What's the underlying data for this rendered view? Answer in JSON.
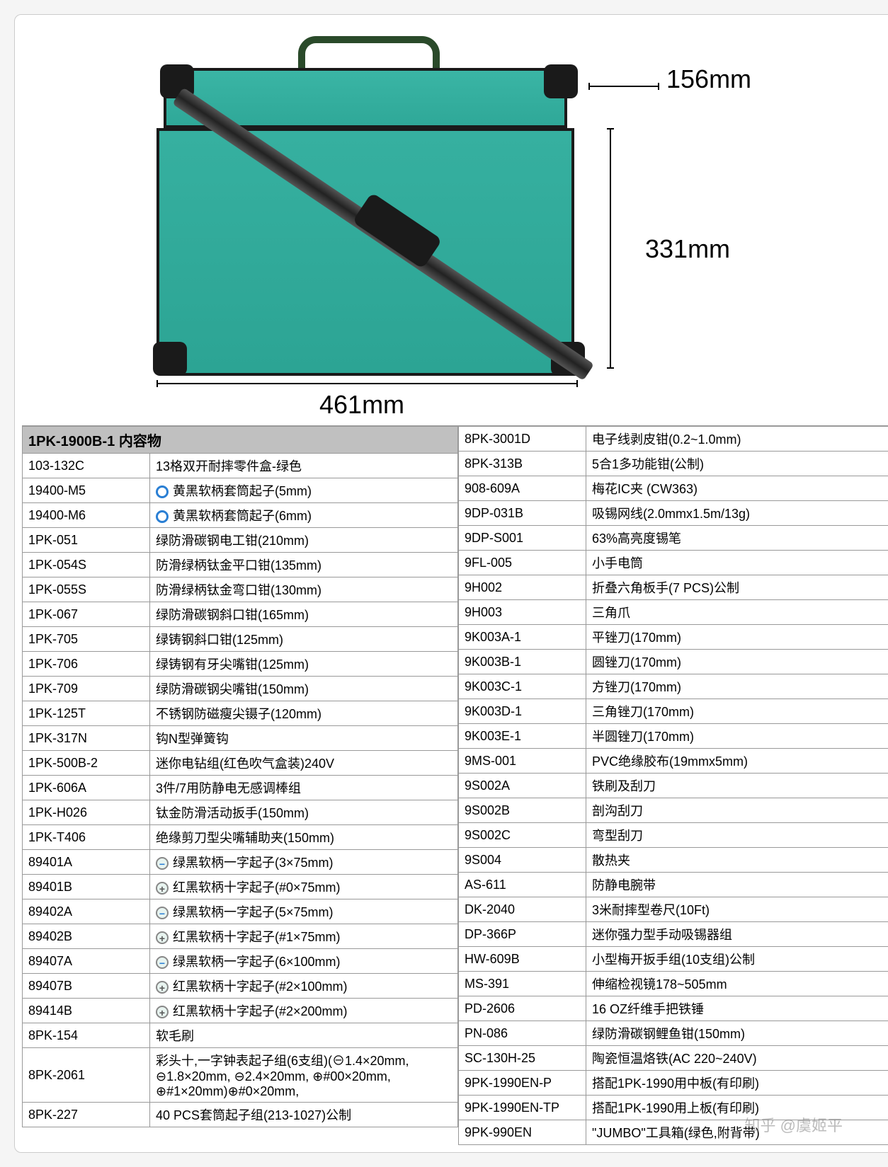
{
  "product": {
    "title": "1PK-1900B-1 内容物",
    "dimensions": {
      "depth_mm": "156mm",
      "height_mm": "331mm",
      "width_mm": "461mm"
    },
    "case_color": "#2fa898",
    "border_color": "#1a1a1a"
  },
  "colors": {
    "header_bg": "#c0c0c0",
    "border": "#999999",
    "bullet_blue": "#2a7fd4",
    "bullet_gray": "#888888"
  },
  "left_table": [
    {
      "code": "103-132C",
      "desc": "13格双开耐摔零件盒-绿色",
      "icon": null
    },
    {
      "code": "19400-M5",
      "desc": "黄黑软柄套筒起子(5mm)",
      "icon": "blue"
    },
    {
      "code": "19400-M6",
      "desc": "黄黑软柄套筒起子(6mm)",
      "icon": "blue"
    },
    {
      "code": "1PK-051",
      "desc": "绿防滑碳钢电工钳(210mm)",
      "icon": null
    },
    {
      "code": "1PK-054S",
      "desc": "防滑绿柄钛金平口钳(135mm)",
      "icon": null
    },
    {
      "code": "1PK-055S",
      "desc": "防滑绿柄钛金弯口钳(130mm)",
      "icon": null
    },
    {
      "code": "1PK-067",
      "desc": "绿防滑碳钢斜口钳(165mm)",
      "icon": null
    },
    {
      "code": "1PK-705",
      "desc": "绿铸钢斜口钳(125mm)",
      "icon": null
    },
    {
      "code": "1PK-706",
      "desc": "绿铸钢有牙尖嘴钳(125mm)",
      "icon": null
    },
    {
      "code": "1PK-709",
      "desc": "绿防滑碳钢尖嘴钳(150mm)",
      "icon": null
    },
    {
      "code": "1PK-125T",
      "desc": "不锈钢防磁瘦尖镊子(120mm)",
      "icon": null
    },
    {
      "code": "1PK-317N",
      "desc": "钩N型弹簧钩",
      "icon": null
    },
    {
      "code": "1PK-500B-2",
      "desc": "迷你电钻组(红色吹气盒装)240V",
      "icon": null
    },
    {
      "code": "1PK-606A",
      "desc": "3件/7用防静电无感调棒组",
      "icon": null
    },
    {
      "code": "1PK-H026",
      "desc": "钛金防滑活动扳手(150mm)",
      "icon": null
    },
    {
      "code": "1PK-T406",
      "desc": "绝缘剪刀型尖嘴辅助夹(150mm)",
      "icon": null
    },
    {
      "code": "89401A",
      "desc": "绿黑软柄一字起子(3×75mm)",
      "icon": "minus"
    },
    {
      "code": "89401B",
      "desc": "红黑软柄十字起子(#0×75mm)",
      "icon": "plus"
    },
    {
      "code": "89402A",
      "desc": "绿黑软柄一字起子(5×75mm)",
      "icon": "minus"
    },
    {
      "code": "89402B",
      "desc": "红黑软柄十字起子(#1×75mm)",
      "icon": "plus"
    },
    {
      "code": "89407A",
      "desc": "绿黑软柄一字起子(6×100mm)",
      "icon": "minus"
    },
    {
      "code": "89407B",
      "desc": "红黑软柄十字起子(#2×100mm)",
      "icon": "plus"
    },
    {
      "code": "89414B",
      "desc": "红黑软柄十字起子(#2×200mm)",
      "icon": "plus"
    },
    {
      "code": "8PK-154",
      "desc": "软毛刷",
      "icon": null
    },
    {
      "code": "8PK-2061",
      "desc": "彩头十,一字钟表起子组(6支组)(⊖1.4×20mm, ⊖1.8×20mm, ⊖2.4×20mm, ⊕#00×20mm, ⊕#1×20mm)⊕#0×20mm,",
      "icon": null
    },
    {
      "code": "8PK-227",
      "desc": "40 PCS套筒起子组(213-1027)公制",
      "icon": null
    }
  ],
  "right_table": [
    {
      "code": "8PK-3001D",
      "desc": "电子线剥皮钳(0.2~1.0mm)"
    },
    {
      "code": "8PK-313B",
      "desc": "5合1多功能钳(公制)"
    },
    {
      "code": "908-609A",
      "desc": "梅花IC夹 (CW363)"
    },
    {
      "code": "9DP-031B",
      "desc": "吸锡网线(2.0mmx1.5m/13g)"
    },
    {
      "code": "9DP-S001",
      "desc": "63%高亮度锡笔"
    },
    {
      "code": "9FL-005",
      "desc": "小手电筒"
    },
    {
      "code": "9H002",
      "desc": "折叠六角板手(7 PCS)公制"
    },
    {
      "code": "9H003",
      "desc": "三角爪"
    },
    {
      "code": "9K003A-1",
      "desc": "平锉刀(170mm)"
    },
    {
      "code": "9K003B-1",
      "desc": "圆锉刀(170mm)"
    },
    {
      "code": "9K003C-1",
      "desc": "方锉刀(170mm)"
    },
    {
      "code": "9K003D-1",
      "desc": "三角锉刀(170mm)"
    },
    {
      "code": "9K003E-1",
      "desc": "半圆锉刀(170mm)"
    },
    {
      "code": "9MS-001",
      "desc": "PVC绝缘胶布(19mmx5mm)"
    },
    {
      "code": "9S002A",
      "desc": "铁刷及刮刀"
    },
    {
      "code": "9S002B",
      "desc": "剖沟刮刀"
    },
    {
      "code": "9S002C",
      "desc": "弯型刮刀"
    },
    {
      "code": "9S004",
      "desc": "散热夹"
    },
    {
      "code": "AS-611",
      "desc": "防静电腕带"
    },
    {
      "code": "DK-2040",
      "desc": "3米耐摔型卷尺(10Ft)"
    },
    {
      "code": "DP-366P",
      "desc": "迷你强力型手动吸锡器组"
    },
    {
      "code": "HW-609B",
      "desc": "小型梅开扳手组(10支组)公制"
    },
    {
      "code": "MS-391",
      "desc": "伸缩检视镜178~505mm"
    },
    {
      "code": "PD-2606",
      "desc": "16 OZ纤维手把铁锤"
    },
    {
      "code": "PN-086",
      "desc": "绿防滑碳钢鲤鱼钳(150mm)"
    },
    {
      "code": "SC-130H-25",
      "desc": "陶瓷恒温烙铁(AC 220~240V)"
    },
    {
      "code": "9PK-1990EN-P",
      "desc": "搭配1PK-1990用中板(有印刷)"
    },
    {
      "code": "9PK-1990EN-TP",
      "desc": "搭配1PK-1990用上板(有印刷)"
    },
    {
      "code": "9PK-990EN",
      "desc": "\"JUMBO\"工具箱(绿色,附背带)"
    }
  ],
  "watermark": "知乎 @虞姬平"
}
